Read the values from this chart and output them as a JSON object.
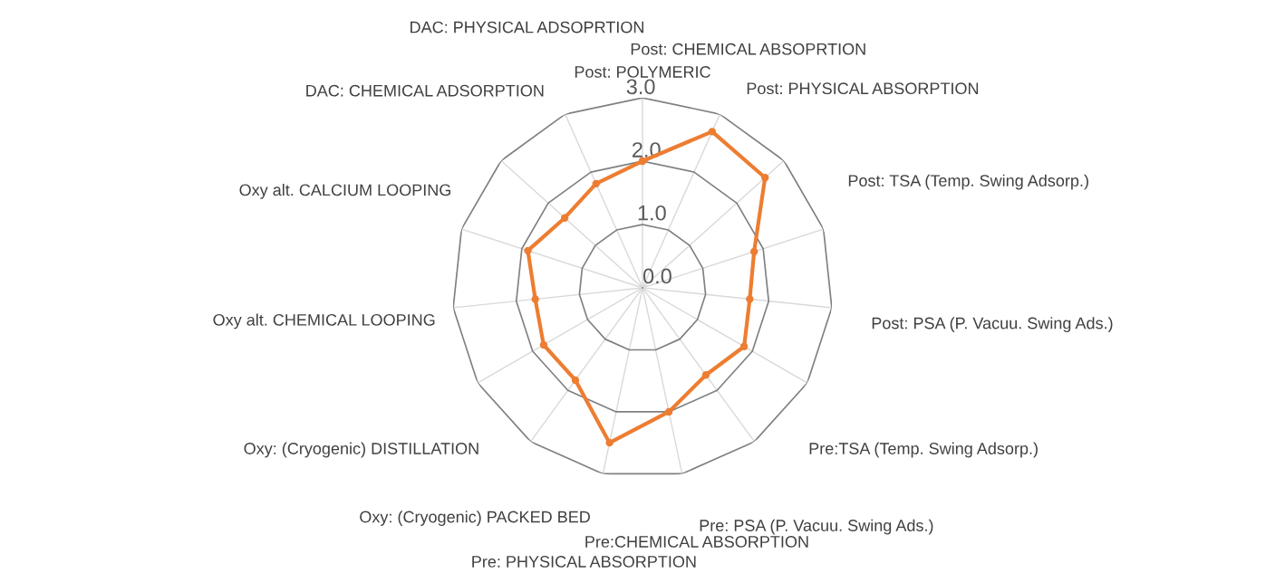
{
  "chart_data": {
    "type": "radar",
    "categories": [
      "Post: POLYMERIC",
      "Post: CHEMICAL ABSOPRTION",
      "Post: PHYSICAL ABSORPTION",
      "Post: TSA (Temp. Swing Adsorp.)",
      "Post: PSA (P. Vacuu. Swing Ads.)",
      "Pre:TSA (Temp. Swing Adsorp.)",
      "Pre: PSA (P. Vacuu. Swing Ads.)",
      "Pre:CHEMICAL ABSORPTION",
      "Pre: PHYSICAL ABSORPTION",
      "Oxy: (Cryogenic) PACKED BED",
      "Oxy: (Cryogenic) DISTILLATION",
      "Oxy alt. CHEMICAL LOOPING",
      "Oxy alt. CALCIUM LOOPING",
      "DAC: CHEMICAL ADSORPTION",
      "DAC: PHYSICAL ADSOPRTION"
    ],
    "series": [
      {
        "color": "#ed7d31",
        "values": [
          2.0,
          2.7,
          2.6,
          1.85,
          1.7,
          1.85,
          1.7,
          2.0,
          2.5,
          1.8,
          1.8,
          1.7,
          1.9,
          1.65,
          1.8
        ]
      }
    ],
    "ylim": [
      0,
      3
    ],
    "yticks": [
      {
        "value": 0,
        "label": "0.0"
      },
      {
        "value": 1,
        "label": "1.0"
      },
      {
        "value": 2,
        "label": "2.0"
      },
      {
        "value": 3,
        "label": "3.0"
      }
    ],
    "grid": true,
    "marker": "circle",
    "line_style": "solid"
  }
}
